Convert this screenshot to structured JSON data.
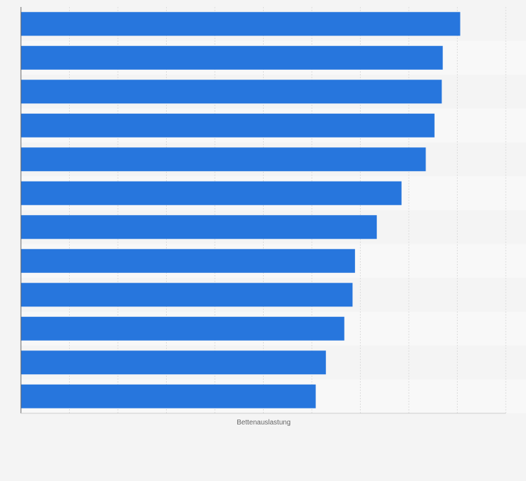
{
  "chart_data": {
    "type": "bar",
    "orientation": "horizontal",
    "categories": [
      "",
      "",
      "",
      "",
      "",
      "",
      "",
      "",
      "",
      "",
      "",
      ""
    ],
    "values": [
      90.6,
      87.0,
      86.8,
      85.3,
      83.5,
      78.5,
      73.4,
      68.9,
      68.4,
      66.7,
      62.9,
      60.8
    ],
    "xlabel": "Bettenauslastung",
    "ylabel": "",
    "xlim": [
      0,
      100
    ],
    "grid": true,
    "legend": "none",
    "bar_color": "#2776dd",
    "band_colors": [
      "#f4f4f4",
      "#f8f8f8"
    ]
  }
}
